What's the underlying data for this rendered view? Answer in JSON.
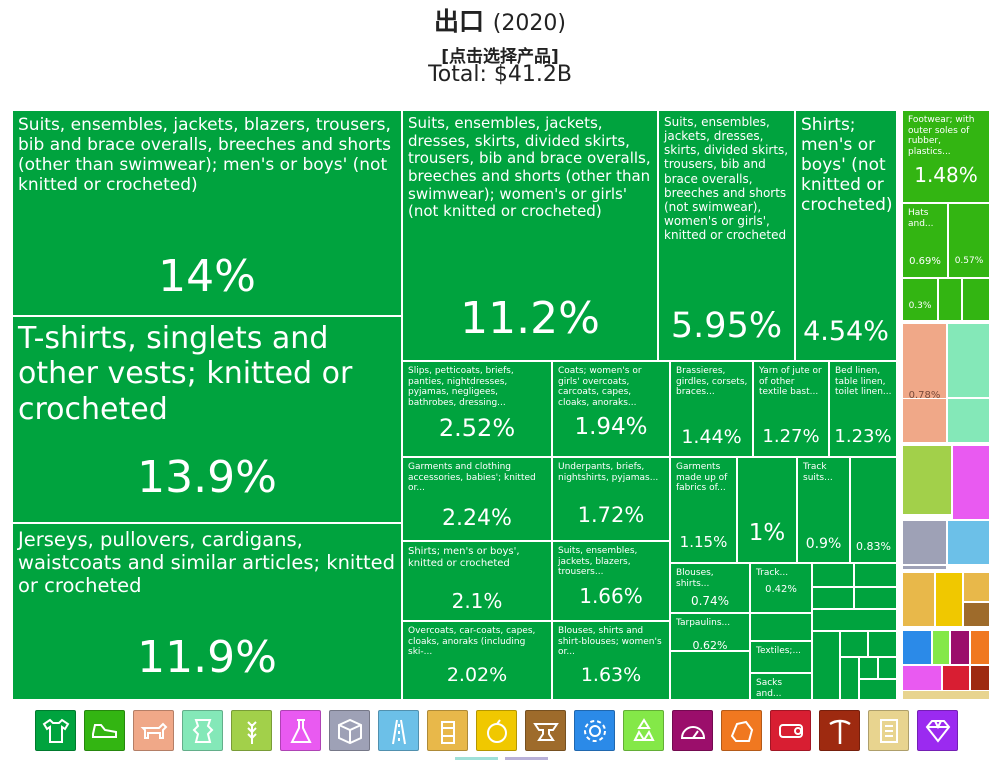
{
  "header": {
    "title": "出口",
    "year": "(2020)",
    "subtitle": "[点击选择产品]",
    "total": "Total: $41.2B"
  },
  "colors": {
    "textiles": "#00a33e",
    "footwear": "#33b512",
    "animal_hides": "#f0a888",
    "vegetable": "#a2d04a",
    "chemicals": "#e95af1",
    "plastics": "#9ea1b6",
    "stone": "#6cc0e8",
    "metals": "#9e6b2b",
    "machines": "#2b8ae8",
    "minerals": "#7b1a50",
    "instruments": "#c72020",
    "arms": "#a0281a",
    "misc": "#e8d48f",
    "gems": "#9b2af0"
  },
  "chart_data": {
    "type": "treemap",
    "title": "出口 (2020)",
    "subtitle": "[点击选择产品]",
    "total": "Total: $41.2B",
    "unit": "% of total exports",
    "items": [
      {
        "name": "Suits, ensembles, jackets, blazers, trousers, bib and brace overalls, breeches and shorts (other than swimwear); men's or boys' (not knitted or crocheted)",
        "value": 14.0,
        "label": "14%",
        "category": "textiles"
      },
      {
        "name": "T-shirts, singlets and other vests; knitted or crocheted",
        "value": 13.9,
        "label": "13.9%",
        "category": "textiles"
      },
      {
        "name": "Jerseys, pullovers, cardigans, waistcoats and similar articles; knitted or crocheted",
        "value": 11.9,
        "label": "11.9%",
        "category": "textiles"
      },
      {
        "name": "Suits, ensembles, jackets, dresses, skirts, divided skirts, trousers, bib and brace overalls, breeches and shorts (other than swimwear); women's or girls' (not knitted or crocheted)",
        "value": 11.2,
        "label": "11.2%",
        "category": "textiles"
      },
      {
        "name": "Suits, ensembles, jackets, dresses, skirts, divided skirts, trousers, bib and brace overalls, breeches and shorts (not swimwear), women's or girls', knitted or crocheted",
        "value": 5.95,
        "label": "5.95%",
        "category": "textiles"
      },
      {
        "name": "Shirts; men's or boys' (not knitted or crocheted)",
        "value": 4.54,
        "label": "4.54%",
        "category": "textiles"
      },
      {
        "name": "Slips, petticoats, briefs, panties, nightdresses, pyjamas, negligees, bathrobes, dressing...",
        "value": 2.52,
        "label": "2.52%",
        "category": "textiles"
      },
      {
        "name": "Garments and clothing accessories, babies'; knitted or...",
        "value": 2.24,
        "label": "2.24%",
        "category": "textiles"
      },
      {
        "name": "Shirts; men's or boys', knitted or crocheted",
        "value": 2.1,
        "label": "2.1%",
        "category": "textiles"
      },
      {
        "name": "Overcoats, car-coats, capes, cloaks, anoraks (including ski-...",
        "value": 2.02,
        "label": "2.02%",
        "category": "textiles"
      },
      {
        "name": "Coats; women's or girls' overcoats, carcoats, capes, cloaks, anoraks...",
        "value": 1.94,
        "label": "1.94%",
        "category": "textiles"
      },
      {
        "name": "Underpants, briefs, nightshirts, pyjamas...",
        "value": 1.72,
        "label": "1.72%",
        "category": "textiles"
      },
      {
        "name": "Suits, ensembles, jackets, blazers, trousers...",
        "value": 1.66,
        "label": "1.66%",
        "category": "textiles"
      },
      {
        "name": "Blouses, shirts and shirt-blouses; women's or...",
        "value": 1.63,
        "label": "1.63%",
        "category": "textiles"
      },
      {
        "name": "Brassieres, girdles, corsets, braces...",
        "value": 1.44,
        "label": "1.44%",
        "category": "textiles"
      },
      {
        "name": "Yarn of jute or of other textile bast...",
        "value": 1.27,
        "label": "1.27%",
        "category": "textiles"
      },
      {
        "name": "Bed linen, table linen, toilet linen...",
        "value": 1.23,
        "label": "1.23%",
        "category": "textiles"
      },
      {
        "name": "Garments made up of fabrics of...",
        "value": 1.15,
        "label": "1.15%",
        "category": "textiles"
      },
      {
        "name": "",
        "value": 1.0,
        "label": "1%",
        "category": "textiles"
      },
      {
        "name": "Track suits...",
        "value": 0.9,
        "label": "0.9%",
        "category": "textiles"
      },
      {
        "name": "",
        "value": 0.83,
        "label": "0.83%",
        "category": "textiles"
      },
      {
        "name": "Blouses, shirts...",
        "value": 0.74,
        "label": "0.74%",
        "category": "textiles"
      },
      {
        "name": "Track...",
        "value": 0.42,
        "label": "0.42%",
        "category": "textiles"
      },
      {
        "name": "Tarpaulins...",
        "value": 0.62,
        "label": "0.62%",
        "category": "textiles"
      },
      {
        "name": "Textiles;...",
        "value": null,
        "label": "",
        "category": "textiles"
      },
      {
        "name": "Sacks and...",
        "value": null,
        "label": "",
        "category": "textiles"
      },
      {
        "name": "Footwear; with outer soles of rubber, plastics...",
        "value": 1.48,
        "label": "1.48%",
        "category": "footwear"
      },
      {
        "name": "Hats and...",
        "value": 0.69,
        "label": "0.69%",
        "category": "footwear"
      },
      {
        "name": "",
        "value": 0.57,
        "label": "0.57%",
        "category": "footwear"
      },
      {
        "name": "",
        "value": 0.3,
        "label": "0.3%",
        "category": "footwear"
      },
      {
        "name": "",
        "value": 0.78,
        "label": "0.78%",
        "category": "animal_hides"
      }
    ]
  },
  "icon_bar": [
    {
      "name": "textiles",
      "icon": "shirt-icon",
      "color": "#00a33e"
    },
    {
      "name": "footwear",
      "icon": "shoe-icon",
      "color": "#33b512"
    },
    {
      "name": "animal products",
      "icon": "animal-icon",
      "color": "#f0a888"
    },
    {
      "name": "animal hides",
      "icon": "hide-icon",
      "color": "#84e8b8"
    },
    {
      "name": "vegetable products",
      "icon": "wheat-icon",
      "color": "#a2d04a"
    },
    {
      "name": "chemical products",
      "icon": "flask-icon",
      "color": "#e95af1"
    },
    {
      "name": "plastics and rubbers",
      "icon": "box-icon",
      "color": "#9ea1b6"
    },
    {
      "name": "transportation",
      "icon": "road-icon",
      "color": "#6cc0e8"
    },
    {
      "name": "foodstuffs",
      "icon": "can-icon",
      "color": "#e8b84a"
    },
    {
      "name": "food",
      "icon": "fruit-icon",
      "color": "#f0c800"
    },
    {
      "name": "metals",
      "icon": "anvil-icon",
      "color": "#9e6b2b"
    },
    {
      "name": "machines",
      "icon": "gear-icon",
      "color": "#2b8ae8"
    },
    {
      "name": "paper goods",
      "icon": "recycle-icon",
      "color": "#84e848"
    },
    {
      "name": "instruments",
      "icon": "gauge-icon",
      "color": "#9b0e6b"
    },
    {
      "name": "mineral products",
      "icon": "rock-icon",
      "color": "#f07820"
    },
    {
      "name": "wood products",
      "icon": "log-icon",
      "color": "#d81e32"
    },
    {
      "name": "weapons",
      "icon": "pickaxe-icon",
      "color": "#9e2a10"
    },
    {
      "name": "miscellaneous",
      "icon": "scroll-icon",
      "color": "#e8d48f"
    },
    {
      "name": "precious metals",
      "icon": "gem-icon",
      "color": "#9b2af0"
    }
  ]
}
